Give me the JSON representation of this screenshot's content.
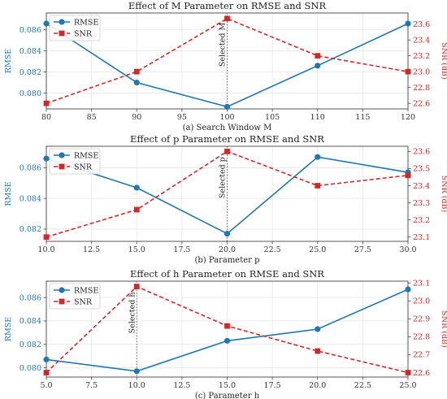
{
  "colors": {
    "rmse": "#1f77b4",
    "snr": "#d62728",
    "grid": "#e6e6e6",
    "axis": "#444444"
  },
  "chart_data": [
    {
      "type": "line",
      "title": "Effect of M Parameter on RMSE and SNR",
      "xlabel": "(a) Search Window M",
      "ylabel_left": "RMSE",
      "ylabel_right": "SNR (dB)",
      "x": [
        80,
        90,
        100,
        110,
        120
      ],
      "xlim": [
        80,
        120
      ],
      "xticks": [
        "80",
        "85",
        "90",
        "95",
        "100",
        "105",
        "110",
        "115",
        "120"
      ],
      "ylim_left": [
        0.0785,
        0.0876
      ],
      "yticks_left": [
        "0.080",
        "0.082",
        "0.084",
        "0.086"
      ],
      "ylim_right": [
        22.53,
        23.74
      ],
      "yticks_right": [
        "22.6",
        "22.8",
        "23.0",
        "23.2",
        "23.4",
        "23.6"
      ],
      "series": [
        {
          "name": "RMSE",
          "axis": "left",
          "values": [
            0.0866,
            0.081,
            0.0787,
            0.0826,
            0.0866
          ]
        },
        {
          "name": "SNR",
          "axis": "right",
          "values": [
            22.6,
            23.0,
            23.67,
            23.2,
            23.0
          ]
        }
      ],
      "legend": "top-left",
      "grid": true,
      "annotation": {
        "x": 100,
        "text": "Selected M"
      }
    },
    {
      "type": "line",
      "title": "Effect of p Parameter on RMSE and SNR",
      "xlabel": "(b) Parameter p",
      "ylabel_left": "RMSE",
      "ylabel_right": "SNR (dB)",
      "x": [
        10.0,
        15.0,
        20.0,
        25.0,
        30.0
      ],
      "xlim": [
        10,
        30
      ],
      "xticks": [
        "10.0",
        "12.5",
        "15.0",
        "17.5",
        "20.0",
        "22.5",
        "25.0",
        "27.5",
        "30.0"
      ],
      "ylim_left": [
        0.0812,
        0.0874
      ],
      "yticks_left": [
        "0.082",
        "0.084",
        "0.086"
      ],
      "ylim_right": [
        23.075,
        23.63
      ],
      "yticks_right": [
        "23.1",
        "23.2",
        "23.3",
        "23.4",
        "23.5",
        "23.6"
      ],
      "series": [
        {
          "name": "RMSE",
          "axis": "left",
          "values": [
            0.0866,
            0.0847,
            0.0817,
            0.0867,
            0.0857
          ]
        },
        {
          "name": "SNR",
          "axis": "right",
          "values": [
            23.1,
            23.26,
            23.6,
            23.4,
            23.46
          ]
        }
      ],
      "legend": "top-left",
      "grid": true,
      "annotation": {
        "x": 20.0,
        "text": "Selected p"
      }
    },
    {
      "type": "line",
      "title": "Effect of h Parameter on RMSE and SNR",
      "xlabel": "(c) Parameter h",
      "ylabel_left": "RMSE",
      "ylabel_right": "SNR (dB)",
      "x": [
        5.0,
        10.0,
        15.0,
        20.0,
        25.0
      ],
      "xlim": [
        5,
        25
      ],
      "xticks": [
        "5.0",
        "7.5",
        "10.0",
        "12.5",
        "15.0",
        "17.5",
        "20.0",
        "22.5",
        "25.0"
      ],
      "ylim_left": [
        0.0792,
        0.0874
      ],
      "yticks_left": [
        "0.080",
        "0.082",
        "0.084",
        "0.086"
      ],
      "ylim_right": [
        22.575,
        23.11
      ],
      "yticks_right": [
        "22.6",
        "22.7",
        "22.8",
        "22.9",
        "23.0",
        "23.1"
      ],
      "series": [
        {
          "name": "RMSE",
          "axis": "left",
          "values": [
            0.0807,
            0.0797,
            0.0823,
            0.0833,
            0.0867
          ]
        },
        {
          "name": "SNR",
          "axis": "right",
          "values": [
            22.6,
            23.08,
            22.86,
            22.72,
            22.6
          ]
        }
      ],
      "legend": "top-left",
      "grid": true,
      "annotation": {
        "x": 10.0,
        "text": "Selected h"
      }
    }
  ]
}
